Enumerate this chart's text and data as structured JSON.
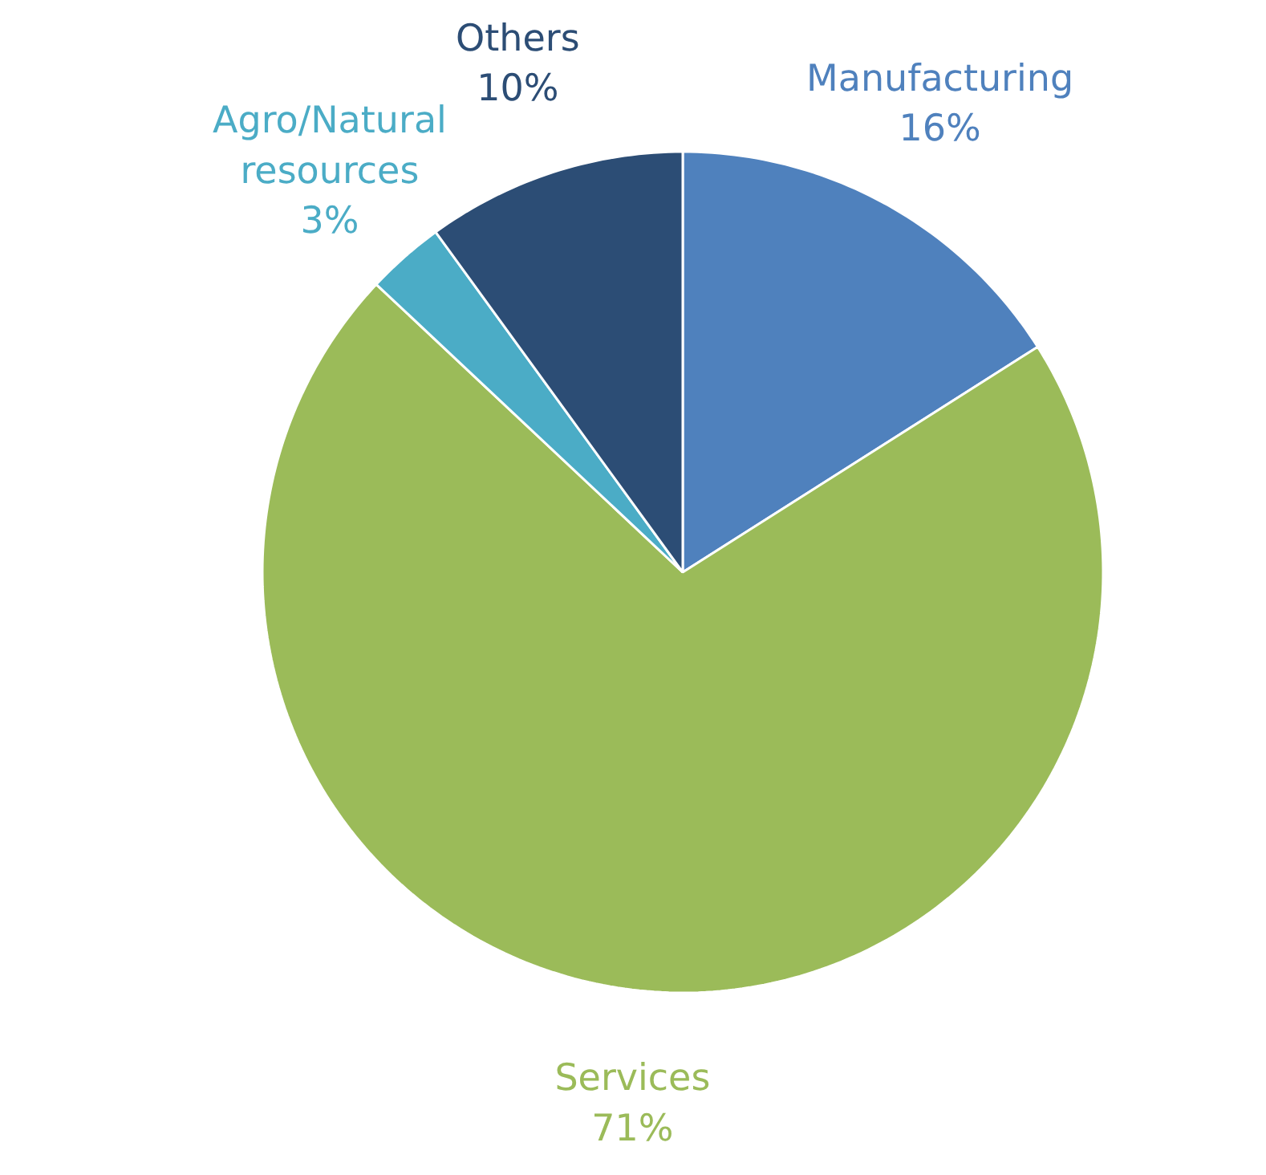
{
  "chart_data": {
    "type": "pie",
    "categories": [
      "Manufacturing",
      "Services",
      "Agro/Natural\nresources",
      "Others"
    ],
    "values": [
      16,
      71,
      3,
      10
    ],
    "colors": [
      "#4f81bd",
      "#9bbb59",
      "#4bacc6",
      "#2c4d75"
    ],
    "value_labels": [
      "16%",
      "71%",
      "3%",
      "10%"
    ]
  }
}
